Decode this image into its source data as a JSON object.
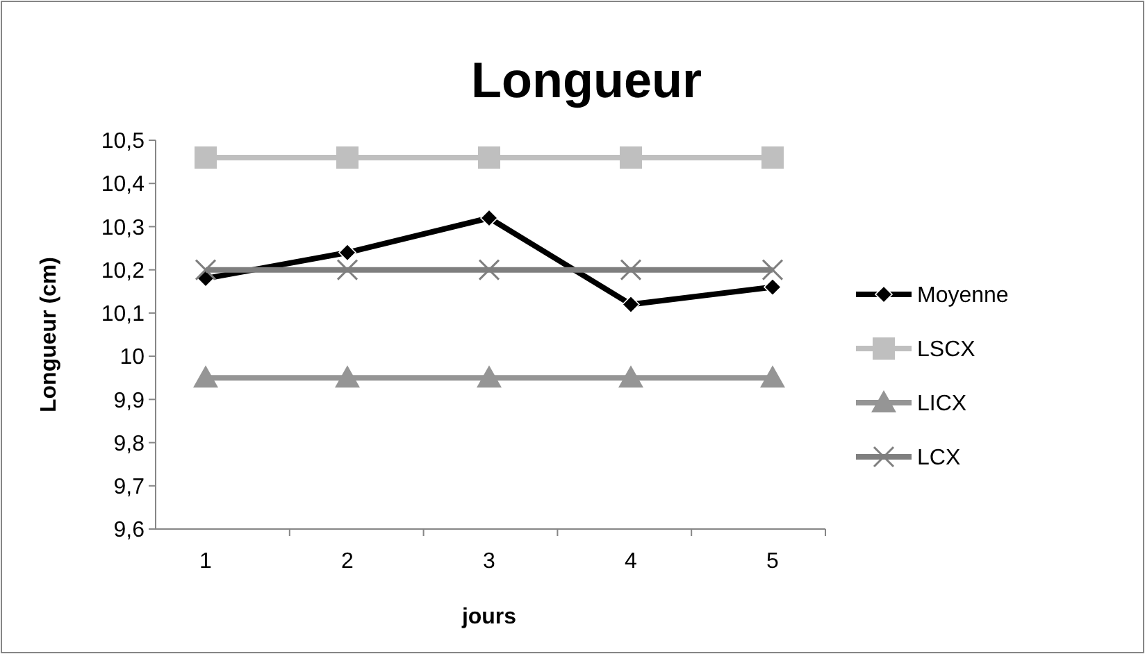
{
  "chart_data": {
    "type": "line",
    "title": "Longueur",
    "xlabel": "jours",
    "ylabel": "Longueur (cm)",
    "categories": [
      "1",
      "2",
      "3",
      "4",
      "5"
    ],
    "ylim": [
      9.6,
      10.5
    ],
    "yticks": [
      {
        "value": 9.6,
        "label": "9,6"
      },
      {
        "value": 9.7,
        "label": "9,7"
      },
      {
        "value": 9.8,
        "label": "9,8"
      },
      {
        "value": 9.9,
        "label": "9,9"
      },
      {
        "value": 10,
        "label": "10"
      },
      {
        "value": 10.1,
        "label": "10,1"
      },
      {
        "value": 10.2,
        "label": "10,2"
      },
      {
        "value": 10.3,
        "label": "10,3"
      },
      {
        "value": 10.4,
        "label": "10,4"
      },
      {
        "value": 10.5,
        "label": "10,5"
      }
    ],
    "grid": false,
    "legend": "right",
    "series": [
      {
        "name": "Moyenne",
        "color": "#000000",
        "marker": "diamond",
        "values": [
          10.18,
          10.24,
          10.32,
          10.12,
          10.16
        ]
      },
      {
        "name": "LSCX",
        "color": "#bfbfbf",
        "marker": "square",
        "values": [
          10.46,
          10.46,
          10.46,
          10.46,
          10.46
        ]
      },
      {
        "name": "LICX",
        "color": "#959595",
        "marker": "triangle",
        "values": [
          9.95,
          9.95,
          9.95,
          9.95,
          9.95
        ]
      },
      {
        "name": "LCX",
        "color": "#7f7f7f",
        "marker": "cross",
        "values": [
          10.2,
          10.2,
          10.2,
          10.2,
          10.2
        ]
      }
    ]
  }
}
